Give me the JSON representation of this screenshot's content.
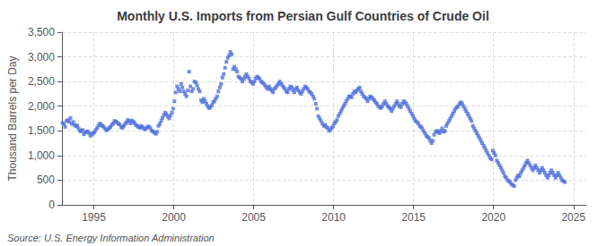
{
  "chart_data": {
    "type": "scatter",
    "title": "Monthly U.S. Imports from Persian Gulf Countries of Crude Oil",
    "ylabel": "Thousand Barrels per Day",
    "annotations": [
      "Source: U.S. Energy Information Administration"
    ],
    "marker": "square",
    "grid": true,
    "xlim": [
      1993.0,
      2025.8
    ],
    "xticks": [
      1995,
      2000,
      2005,
      2010,
      2015,
      2020,
      2025
    ],
    "ylim": [
      0,
      3500
    ],
    "yticks": [
      0,
      500,
      {
        "value": 1000,
        "label": "1,000"
      },
      {
        "value": 1500,
        "label": "1,500"
      },
      {
        "value": 2000,
        "label": "2,000"
      },
      {
        "value": 2500,
        "label": "2,500"
      },
      {
        "value": 3000,
        "label": "3,000"
      },
      {
        "value": 3500,
        "label": "3,500"
      }
    ],
    "x": [
      1993.04,
      1993.12,
      1993.21,
      1993.29,
      1993.38,
      1993.46,
      1993.54,
      1993.62,
      1993.71,
      1993.79,
      1993.88,
      1993.96,
      1994.04,
      1994.12,
      1994.21,
      1994.29,
      1994.38,
      1994.46,
      1994.54,
      1994.62,
      1994.71,
      1994.79,
      1994.88,
      1994.96,
      1995.04,
      1995.12,
      1995.21,
      1995.29,
      1995.38,
      1995.46,
      1995.54,
      1995.62,
      1995.71,
      1995.79,
      1995.88,
      1995.96,
      1996.04,
      1996.12,
      1996.21,
      1996.29,
      1996.38,
      1996.46,
      1996.54,
      1996.62,
      1996.71,
      1996.79,
      1996.88,
      1996.96,
      1997.04,
      1997.12,
      1997.21,
      1997.29,
      1997.38,
      1997.46,
      1997.54,
      1997.62,
      1997.71,
      1997.79,
      1997.88,
      1997.96,
      1998.04,
      1998.12,
      1998.21,
      1998.29,
      1998.38,
      1998.46,
      1998.54,
      1998.62,
      1998.71,
      1998.79,
      1998.88,
      1998.96,
      1999.04,
      1999.12,
      1999.21,
      1999.29,
      1999.38,
      1999.46,
      1999.54,
      1999.62,
      1999.71,
      1999.79,
      1999.88,
      1999.96,
      2000.04,
      2000.12,
      2000.21,
      2000.29,
      2000.38,
      2000.46,
      2000.54,
      2000.62,
      2000.71,
      2000.79,
      2000.88,
      2000.96,
      2001.04,
      2001.12,
      2001.21,
      2001.29,
      2001.38,
      2001.46,
      2001.54,
      2001.62,
      2001.71,
      2001.79,
      2001.88,
      2001.96,
      2002.04,
      2002.12,
      2002.21,
      2002.29,
      2002.38,
      2002.46,
      2002.54,
      2002.62,
      2002.71,
      2002.79,
      2002.88,
      2002.96,
      2003.04,
      2003.12,
      2003.21,
      2003.29,
      2003.38,
      2003.46,
      2003.54,
      2003.62,
      2003.71,
      2003.79,
      2003.88,
      2003.96,
      2004.04,
      2004.12,
      2004.21,
      2004.29,
      2004.38,
      2004.46,
      2004.54,
      2004.62,
      2004.71,
      2004.79,
      2004.88,
      2004.96,
      2005.04,
      2005.12,
      2005.21,
      2005.29,
      2005.38,
      2005.46,
      2005.54,
      2005.62,
      2005.71,
      2005.79,
      2005.88,
      2005.96,
      2006.04,
      2006.12,
      2006.21,
      2006.29,
      2006.38,
      2006.46,
      2006.54,
      2006.62,
      2006.71,
      2006.79,
      2006.88,
      2006.96,
      2007.04,
      2007.12,
      2007.21,
      2007.29,
      2007.38,
      2007.46,
      2007.54,
      2007.62,
      2007.71,
      2007.79,
      2007.88,
      2007.96,
      2008.04,
      2008.12,
      2008.21,
      2008.29,
      2008.38,
      2008.46,
      2008.54,
      2008.62,
      2008.71,
      2008.79,
      2008.88,
      2008.96,
      2009.04,
      2009.12,
      2009.21,
      2009.29,
      2009.38,
      2009.46,
      2009.54,
      2009.62,
      2009.71,
      2009.79,
      2009.88,
      2009.96,
      2010.04,
      2010.12,
      2010.21,
      2010.29,
      2010.38,
      2010.46,
      2010.54,
      2010.62,
      2010.71,
      2010.79,
      2010.88,
      2010.96,
      2011.04,
      2011.12,
      2011.21,
      2011.29,
      2011.38,
      2011.46,
      2011.54,
      2011.62,
      2011.71,
      2011.79,
      2011.88,
      2011.96,
      2012.04,
      2012.12,
      2012.21,
      2012.29,
      2012.38,
      2012.46,
      2012.54,
      2012.62,
      2012.71,
      2012.79,
      2012.88,
      2012.96,
      2013.04,
      2013.12,
      2013.21,
      2013.29,
      2013.38,
      2013.46,
      2013.54,
      2013.62,
      2013.71,
      2013.79,
      2013.88,
      2013.96,
      2014.04,
      2014.12,
      2014.21,
      2014.29,
      2014.38,
      2014.46,
      2014.54,
      2014.62,
      2014.71,
      2014.79,
      2014.88,
      2014.96,
      2015.04,
      2015.12,
      2015.21,
      2015.29,
      2015.38,
      2015.46,
      2015.54,
      2015.62,
      2015.71,
      2015.79,
      2015.88,
      2015.96,
      2016.04,
      2016.12,
      2016.21,
      2016.29,
      2016.38,
      2016.46,
      2016.54,
      2016.62,
      2016.71,
      2016.79,
      2016.88,
      2016.96,
      2017.04,
      2017.12,
      2017.21,
      2017.29,
      2017.38,
      2017.46,
      2017.54,
      2017.62,
      2017.71,
      2017.79,
      2017.88,
      2017.96,
      2018.04,
      2018.12,
      2018.21,
      2018.29,
      2018.38,
      2018.46,
      2018.54,
      2018.62,
      2018.71,
      2018.79,
      2018.88,
      2018.96,
      2019.04,
      2019.12,
      2019.21,
      2019.29,
      2019.38,
      2019.46,
      2019.54,
      2019.62,
      2019.71,
      2019.79,
      2019.88,
      2019.96,
      2020.04,
      2020.12,
      2020.21,
      2020.29,
      2020.38,
      2020.46,
      2020.54,
      2020.62,
      2020.71,
      2020.79,
      2020.88,
      2020.96,
      2021.04,
      2021.12,
      2021.21,
      2021.29,
      2021.38,
      2021.46,
      2021.54,
      2021.62,
      2021.71,
      2021.79,
      2021.88,
      2021.96,
      2022.04,
      2022.12,
      2022.21,
      2022.29,
      2022.38,
      2022.46,
      2022.54,
      2022.62,
      2022.71,
      2022.79,
      2022.88,
      2022.96,
      2023.04,
      2023.12,
      2023.21,
      2023.29,
      2023.38,
      2023.46,
      2023.54,
      2023.62,
      2023.71,
      2023.79,
      2023.88,
      2023.96,
      2024.04,
      2024.12,
      2024.21,
      2024.29,
      2024.38,
      2024.46
    ],
    "values": [
      1660,
      1640,
      1580,
      1700,
      1720,
      1680,
      1760,
      1640,
      1680,
      1620,
      1590,
      1610,
      1550,
      1500,
      1490,
      1520,
      1430,
      1470,
      1480,
      1490,
      1450,
      1400,
      1430,
      1460,
      1470,
      1520,
      1560,
      1610,
      1650,
      1620,
      1600,
      1580,
      1540,
      1510,
      1530,
      1560,
      1580,
      1620,
      1650,
      1700,
      1690,
      1670,
      1640,
      1630,
      1580,
      1560,
      1600,
      1640,
      1670,
      1720,
      1700,
      1650,
      1710,
      1690,
      1660,
      1620,
      1600,
      1580,
      1560,
      1600,
      1580,
      1550,
      1530,
      1560,
      1590,
      1580,
      1550,
      1500,
      1490,
      1460,
      1440,
      1480,
      1600,
      1640,
      1700,
      1760,
      1820,
      1870,
      1840,
      1790,
      1750,
      1810,
      1870,
      1950,
      2100,
      2280,
      2400,
      2350,
      2300,
      2450,
      2380,
      2300,
      2250,
      2200,
      2320,
      2700,
      2400,
      2300,
      2350,
      2500,
      2480,
      2420,
      2350,
      2300,
      2120,
      2080,
      2150,
      2100,
      2050,
      2000,
      1960,
      1980,
      2020,
      2080,
      2100,
      2150,
      2200,
      2300,
      2380,
      2450,
      2580,
      2650,
      2780,
      2900,
      2980,
      3030,
      3100,
      3050,
      2750,
      2800,
      2750,
      2700,
      2600,
      2580,
      2550,
      2500,
      2550,
      2600,
      2650,
      2600,
      2560,
      2500,
      2480,
      2450,
      2500,
      2560,
      2600,
      2580,
      2550,
      2500,
      2480,
      2460,
      2420,
      2380,
      2350,
      2400,
      2350,
      2320,
      2280,
      2350,
      2380,
      2420,
      2450,
      2500,
      2460,
      2420,
      2380,
      2350,
      2300,
      2280,
      2350,
      2400,
      2380,
      2320,
      2280,
      2350,
      2380,
      2320,
      2280,
      2250,
      2300,
      2350,
      2400,
      2380,
      2350,
      2300,
      2280,
      2250,
      2200,
      2150,
      2050,
      1950,
      1800,
      1750,
      1700,
      1650,
      1600,
      1620,
      1580,
      1560,
      1500,
      1520,
      1560,
      1590,
      1650,
      1680,
      1720,
      1800,
      1850,
      1900,
      1950,
      2000,
      2050,
      2100,
      2150,
      2200,
      2200,
      2180,
      2250,
      2300,
      2280,
      2320,
      2350,
      2380,
      2300,
      2250,
      2200,
      2180,
      2150,
      2100,
      2150,
      2200,
      2180,
      2150,
      2120,
      2080,
      2050,
      2000,
      1980,
      1960,
      2000,
      2050,
      2100,
      2050,
      2000,
      1980,
      1950,
      1900,
      1950,
      2000,
      2050,
      2100,
      2050,
      2000,
      1980,
      2050,
      2100,
      2080,
      2050,
      2000,
      1950,
      1900,
      1850,
      1800,
      1750,
      1700,
      1680,
      1650,
      1600,
      1580,
      1550,
      1500,
      1450,
      1400,
      1380,
      1350,
      1300,
      1250,
      1300,
      1420,
      1480,
      1500,
      1480,
      1450,
      1500,
      1550,
      1480,
      1500,
      1600,
      1650,
      1700,
      1750,
      1800,
      1850,
      1900,
      1950,
      1980,
      2000,
      2050,
      2080,
      2050,
      2000,
      1950,
      1900,
      1850,
      1800,
      1750,
      1700,
      1600,
      1550,
      1500,
      1450,
      1400,
      1350,
      1300,
      1250,
      1200,
      1150,
      1100,
      1050,
      1000,
      950,
      920,
      1100,
      1050,
      1000,
      900,
      850,
      800,
      750,
      700,
      650,
      580,
      550,
      500,
      480,
      460,
      420,
      400,
      380,
      500,
      550,
      600,
      580,
      650,
      700,
      750,
      800,
      850,
      900,
      850,
      800,
      750,
      700,
      750,
      800,
      750,
      700,
      650,
      700,
      750,
      700,
      650,
      600,
      550,
      600,
      650,
      700,
      650,
      600,
      550,
      600,
      650,
      600,
      550,
      500,
      480,
      460
    ]
  }
}
